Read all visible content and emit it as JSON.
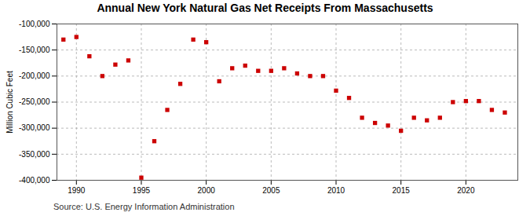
{
  "chart_data": {
    "type": "scatter",
    "title": "Annual New York Natural Gas Net Receipts From Massachusetts",
    "ylabel": "Million Cubic Feet",
    "annotations": [
      "Source: U.S. Energy Information Administration"
    ],
    "x": [
      1989,
      1990,
      1991,
      1992,
      1993,
      1994,
      1995,
      1996,
      1997,
      1998,
      1999,
      2000,
      2001,
      2002,
      2003,
      2004,
      2005,
      2006,
      2007,
      2008,
      2009,
      2010,
      2011,
      2012,
      2013,
      2014,
      2015,
      2016,
      2017,
      2018,
      2019,
      2020,
      2021,
      2022,
      2023
    ],
    "values": [
      -130000,
      -125000,
      -162000,
      -200000,
      -178000,
      -170000,
      -395000,
      -325000,
      -265000,
      -215000,
      -130000,
      -135000,
      -210000,
      -185000,
      -180000,
      -190000,
      -190000,
      -185000,
      -195000,
      -200000,
      -200000,
      -228000,
      -242000,
      -280000,
      -290000,
      -295000,
      -305000,
      -280000,
      -285000,
      -280000,
      -250000,
      -248000,
      -248000,
      -265000,
      -270000
    ],
    "color": "#cc0000",
    "marker": "square",
    "xlim": [
      1988.5,
      2024
    ],
    "xticks": [
      1990,
      1995,
      2000,
      2005,
      2010,
      2015,
      2020
    ],
    "ylim": [
      -400000,
      -100000
    ],
    "yticks": [
      {
        "value": -400000,
        "label": "-400,000"
      },
      {
        "value": -350000,
        "label": "-350,000"
      },
      {
        "value": -300000,
        "label": "-300,000"
      },
      {
        "value": -250000,
        "label": "-250,000"
      },
      {
        "value": -200000,
        "label": "-200,000"
      },
      {
        "value": -150000,
        "label": "-150,000"
      },
      {
        "value": -100000,
        "label": "-100,000"
      }
    ],
    "grid": true
  }
}
